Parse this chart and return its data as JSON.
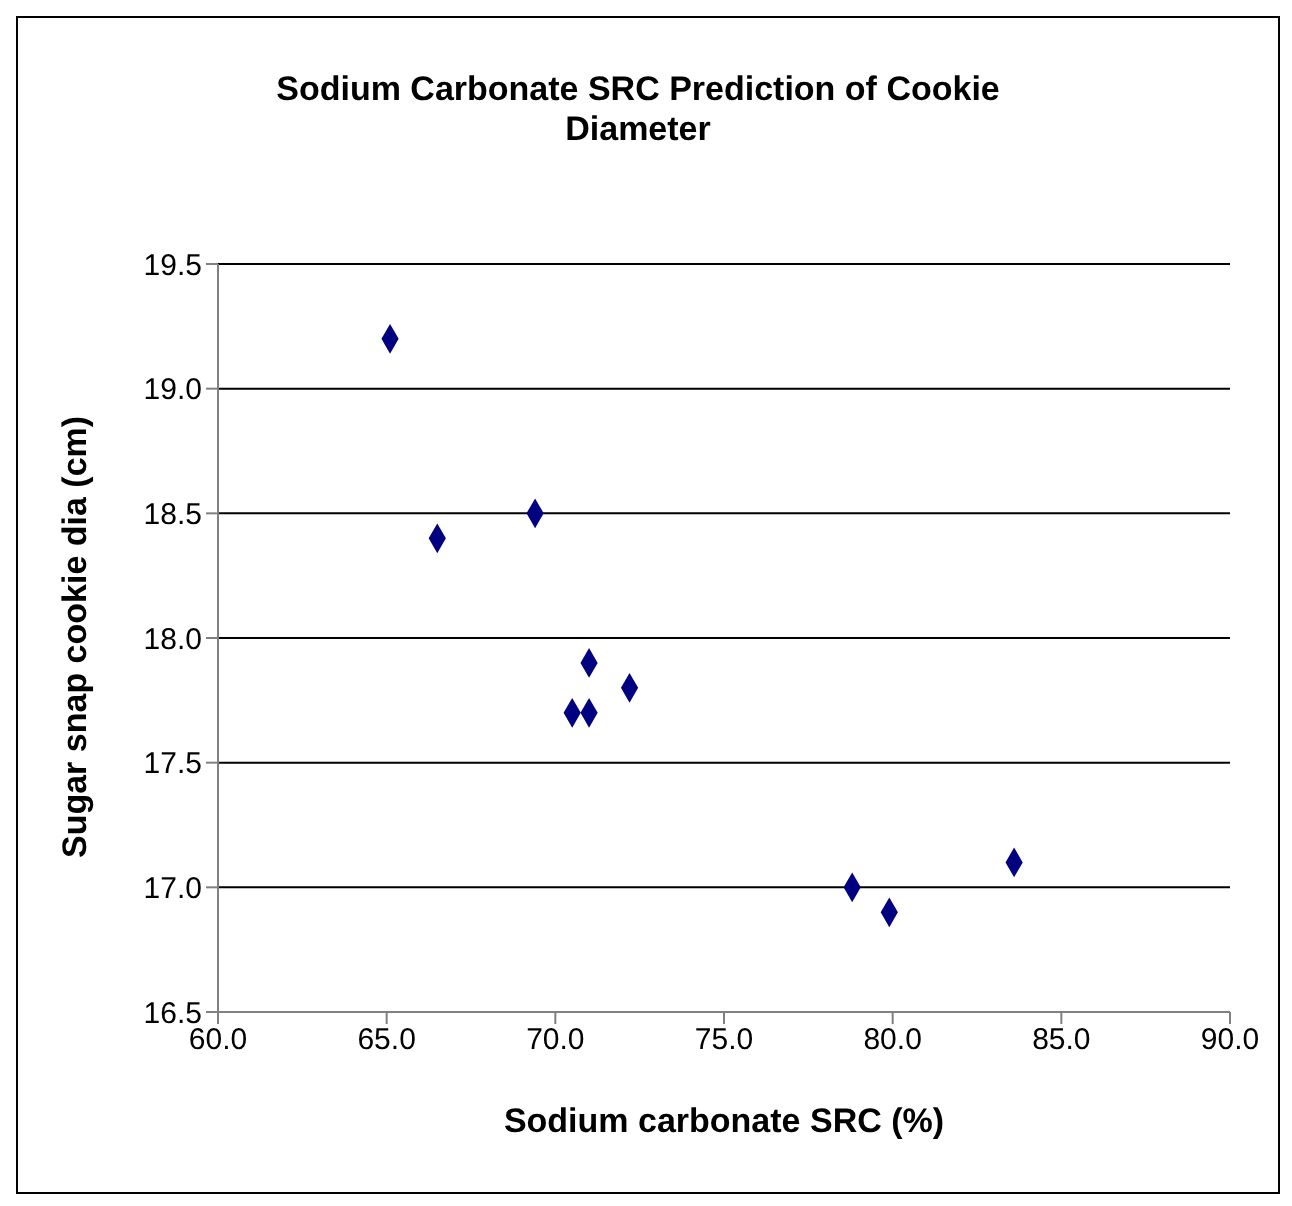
{
  "chart_data": {
    "type": "scatter",
    "title": "Sodium Carbonate SRC Prediction of Cookie Diameter",
    "xlabel": "Sodium carbonate SRC (%)",
    "ylabel": "Sugar snap cookie dia (cm)",
    "x": [
      65.1,
      66.5,
      69.4,
      71.0,
      70.5,
      71.0,
      72.2,
      78.8,
      79.9,
      83.6
    ],
    "values": [
      19.2,
      18.4,
      18.5,
      17.9,
      17.7,
      17.7,
      17.8,
      17.0,
      16.9,
      17.1
    ],
    "color": "#000080",
    "marker": "diamond",
    "grid": "y",
    "legend": false,
    "xlim": [
      60,
      90
    ],
    "xticks": [
      {
        "value": 60,
        "label": "60.0"
      },
      {
        "value": 65,
        "label": "65.0"
      },
      {
        "value": 70,
        "label": "70.0"
      },
      {
        "value": 75,
        "label": "75.0"
      },
      {
        "value": 80,
        "label": "80.0"
      },
      {
        "value": 85,
        "label": "85.0"
      },
      {
        "value": 90,
        "label": "90.0"
      }
    ],
    "ylim": [
      16.5,
      19.5
    ],
    "yticks": [
      {
        "value": 16.5,
        "label": "16.5"
      },
      {
        "value": 17,
        "label": "17.0"
      },
      {
        "value": 17.5,
        "label": "17.5"
      },
      {
        "value": 18,
        "label": "18.0"
      },
      {
        "value": 18.5,
        "label": "18.5"
      },
      {
        "value": 19,
        "label": "19.0"
      },
      {
        "value": 19.5,
        "label": "19.5"
      }
    ]
  }
}
